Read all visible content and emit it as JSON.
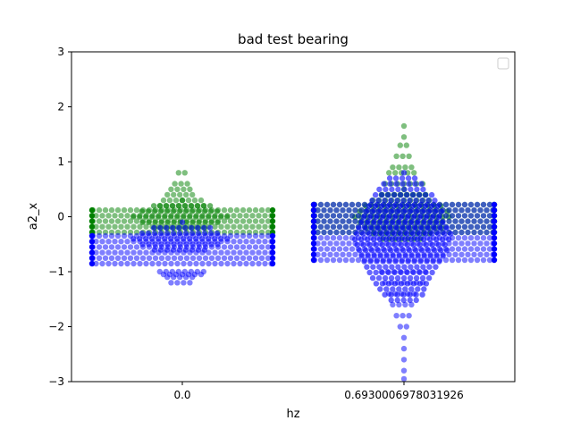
{
  "chart_data": {
    "type": "scatter",
    "subtype": "swarm",
    "title": "bad test bearing",
    "xlabel": "hz",
    "ylabel": "a2_x",
    "categories": [
      "0.0",
      "0.6930006978031926"
    ],
    "ylim": [
      -3,
      3
    ],
    "yticks": [
      "3",
      "2",
      "1",
      "0",
      "−1",
      "−2",
      "−3"
    ],
    "ytick_values": [
      3,
      2,
      1,
      0,
      -1,
      -2,
      -3
    ],
    "grid": false,
    "legend": {
      "placement": "top-right",
      "entries": []
    },
    "series": [
      {
        "color": "#008000",
        "alpha": 0.5,
        "edge_color": "#008000",
        "category_distributions": [
          {
            "category": "0.0",
            "min": -0.35,
            "max": 0.12,
            "outliers": [
              0.2,
              0.3,
              0.4,
              0.5,
              0.6,
              0.8
            ],
            "ellipse_center": 0,
            "ellipse_height": 0.3
          },
          {
            "category": "0.6930006978031926",
            "min": -0.3,
            "max": 0.22,
            "outliers": [
              0.4,
              0.6,
              0.8,
              0.9,
              1.1,
              1.3,
              1.45,
              1.65
            ],
            "ellipse_center": 0,
            "ellipse_height": 0.5
          }
        ]
      },
      {
        "color": "#0000ff",
        "alpha": 0.5,
        "edge_color": "#0000ff",
        "category_distributions": [
          {
            "category": "0.0",
            "min": -0.95,
            "max": -0.35,
            "outliers": [
              -1.0,
              -1.05,
              -1.1,
              -1.2
            ],
            "ellipse_center": -0.4,
            "ellipse_height": 0.3
          },
          {
            "category": "0.6930006978031926",
            "min": -0.85,
            "max": 0.22,
            "outliers": [
              -1.0,
              -1.2,
              -1.4,
              -1.6,
              -1.8,
              -2.0,
              -2.2,
              -2.4,
              -2.6,
              -2.8,
              -2.95
            ],
            "ellipse_center": -0.4,
            "ellipse_height": 1.2
          }
        ]
      }
    ]
  }
}
